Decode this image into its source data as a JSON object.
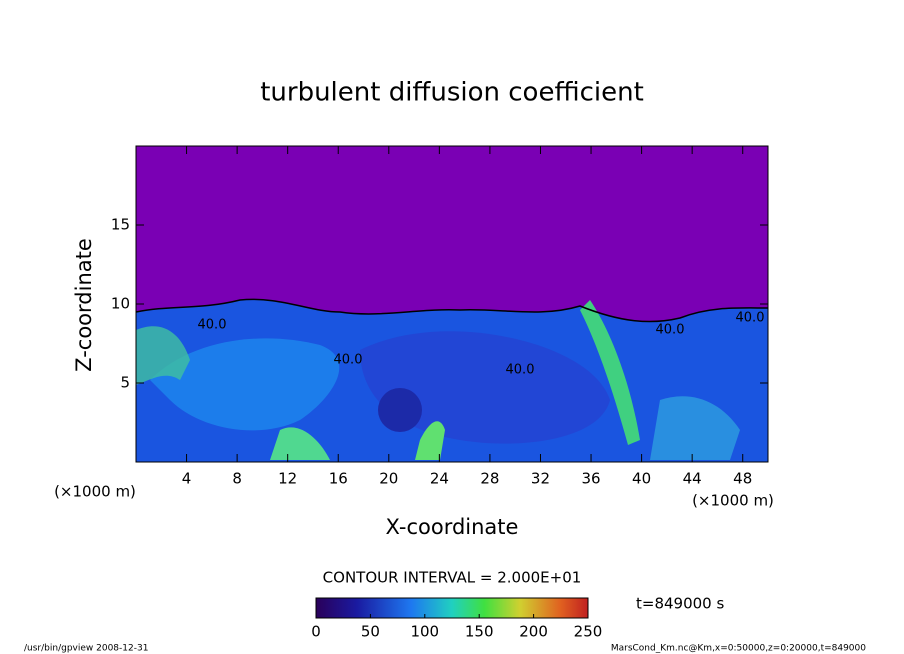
{
  "chart_data": {
    "type": "contour",
    "title": "turbulent diffusion coefficient",
    "xlabel": "X-coordinate",
    "ylabel": "Z-coordinate",
    "x_unit": "(×1000 m)",
    "y_unit": "(×1000 m)",
    "xlim": [
      0,
      50
    ],
    "ylim": [
      0,
      20
    ],
    "xticks": [
      4,
      8,
      12,
      16,
      20,
      24,
      28,
      32,
      36,
      40,
      44,
      48
    ],
    "yticks": [
      5,
      10,
      15
    ],
    "contour_labels": [
      "40.0",
      "40.0",
      "40.0",
      "40.0",
      "40.0"
    ],
    "contour_interval_text": "CONTOUR INTERVAL = 2.000E+01",
    "colorbar_lim": [
      0,
      250
    ],
    "colorbar_ticks": [
      0,
      50,
      100,
      150,
      200,
      250
    ],
    "time_text": "t=849000 s",
    "footer_left": "/usr/bin/gpview  2008-12-31",
    "footer_right": "MarsCond_Km.nc@Km,x=0:50000,z=0:20000,t=849000"
  }
}
